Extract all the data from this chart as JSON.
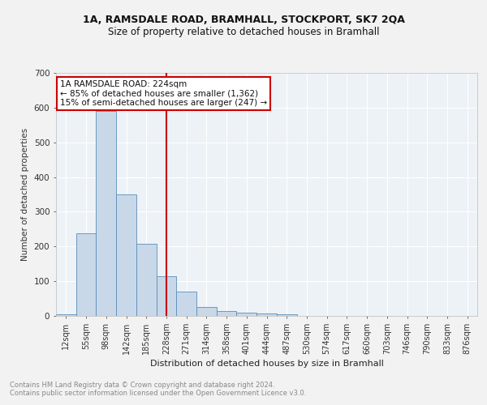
{
  "title1": "1A, RAMSDALE ROAD, BRAMHALL, STOCKPORT, SK7 2QA",
  "title2": "Size of property relative to detached houses in Bramhall",
  "xlabel": "Distribution of detached houses by size in Bramhall",
  "ylabel": "Number of detached properties",
  "bin_labels": [
    "12sqm",
    "55sqm",
    "98sqm",
    "142sqm",
    "185sqm",
    "228sqm",
    "271sqm",
    "314sqm",
    "358sqm",
    "401sqm",
    "444sqm",
    "487sqm",
    "530sqm",
    "574sqm",
    "617sqm",
    "660sqm",
    "703sqm",
    "746sqm",
    "790sqm",
    "833sqm",
    "876sqm"
  ],
  "bar_heights": [
    5,
    237,
    590,
    350,
    207,
    115,
    70,
    25,
    15,
    10,
    7,
    5,
    0,
    0,
    0,
    0,
    0,
    0,
    0,
    0,
    0
  ],
  "bar_color": "#c8d8e8",
  "bar_edge_color": "#5b8db8",
  "vline_x": 5,
  "vline_color": "#cc0000",
  "annotation_text": "1A RAMSDALE ROAD: 224sqm\n← 85% of detached houses are smaller (1,362)\n15% of semi-detached houses are larger (247) →",
  "annotation_box_color": "#cc0000",
  "ylim": [
    0,
    700
  ],
  "yticks": [
    0,
    100,
    200,
    300,
    400,
    500,
    600,
    700
  ],
  "footer_text": "Contains HM Land Registry data © Crown copyright and database right 2024.\nContains public sector information licensed under the Open Government Licence v3.0.",
  "fig_bg_color": "#f2f2f2",
  "plot_bg_color": "#edf2f7",
  "grid_color": "#ffffff",
  "num_bins": 21
}
